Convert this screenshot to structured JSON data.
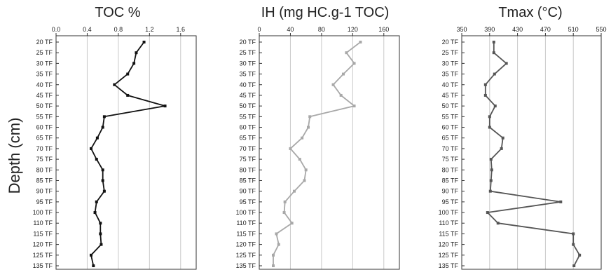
{
  "figure": {
    "ylabel": "Depth (cm)"
  },
  "chart_data": [
    {
      "type": "line",
      "title": "TOC %",
      "xlim": [
        0,
        1.8
      ],
      "xticks": [
        0.0,
        0.4,
        0.8,
        1.2,
        1.6
      ],
      "xtick_labels": [
        "0.0",
        "0.4",
        "0.8",
        "1.2",
        "1.6"
      ],
      "grid": true,
      "categories": [
        "20 TF",
        "25 TF",
        "30 TF",
        "35 TF",
        "40 TF",
        "45 TF",
        "50 TF",
        "55 TF",
        "60 TF",
        "65 TF",
        "70 TF",
        "75 TF",
        "80 TF",
        "85 TF",
        "90 TF",
        "95 TF",
        "100 TF",
        "110 TF",
        "115 TF",
        "120 TF",
        "125 TF",
        "135 TF"
      ],
      "series": [
        {
          "color": "#111111",
          "values": [
            1.13,
            1.03,
            1.0,
            0.92,
            0.75,
            0.92,
            1.4,
            0.62,
            0.6,
            0.53,
            0.45,
            0.52,
            0.6,
            0.6,
            0.62,
            0.52,
            0.5,
            0.57,
            0.57,
            0.58,
            0.45,
            0.48
          ]
        }
      ]
    },
    {
      "type": "line",
      "title": "IH (mg HC.g-1 TOC)",
      "xlim": [
        0,
        180
      ],
      "xticks": [
        0,
        40,
        80,
        120,
        160
      ],
      "xtick_labels": [
        "0",
        "40",
        "80",
        "120",
        "160"
      ],
      "grid": true,
      "categories": [
        "20 TF",
        "25 TF",
        "30 TF",
        "35 TF",
        "40 TF",
        "45 TF",
        "50 TF",
        "55 TF",
        "60 TF",
        "65 TF",
        "70 TF",
        "75 TF",
        "80 TF",
        "85 TF",
        "90 TF",
        "95 TF",
        "100 TF",
        "110 TF",
        "115 TF",
        "120 TF",
        "125 TF",
        "135 TF"
      ],
      "series": [
        {
          "color": "#a8a8a8",
          "values": [
            130,
            112,
            122,
            108,
            95,
            105,
            122,
            65,
            63,
            55,
            40,
            52,
            60,
            58,
            45,
            33,
            32,
            42,
            22,
            25,
            18,
            18
          ]
        }
      ]
    },
    {
      "type": "line",
      "title": "Tmax (°C)",
      "xlim": [
        350,
        550
      ],
      "xticks": [
        350,
        390,
        430,
        470,
        510,
        550
      ],
      "xtick_labels": [
        "350",
        "390",
        "430",
        "470",
        "510",
        "550"
      ],
      "grid": true,
      "categories": [
        "20 TF",
        "25 TF",
        "30 TF",
        "35 TF",
        "40 TF",
        "45 TF",
        "50 TF",
        "55 TF",
        "60 TF",
        "65 TF",
        "70 TF",
        "75 TF",
        "80 TF",
        "85 TF",
        "90 TF",
        "95 TF",
        "100 TF",
        "110 TF",
        "115 TF",
        "120 TF",
        "125 TF",
        "135 TF"
      ],
      "series": [
        {
          "color": "#555555",
          "values": [
            396,
            396,
            414,
            397,
            384,
            384,
            398,
            390,
            390,
            409,
            407,
            392,
            393,
            392,
            391,
            492,
            387,
            402,
            510,
            510,
            519,
            511
          ]
        }
      ]
    }
  ]
}
